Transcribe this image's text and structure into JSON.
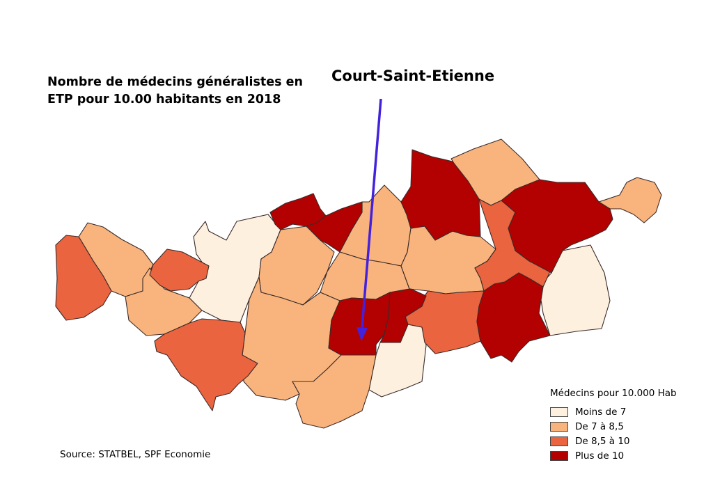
{
  "title": "Nombre de médecins généralistes en ETP pour 10.00 habitants en 2018",
  "callout_label": "Court-Saint-Etienne",
  "source": "Source: STATBEL, SPF Economie",
  "legend": {
    "title": "Médecins pour 10.000 Hab",
    "items": [
      {
        "label": "Moins de 7",
        "color": "#fdf0df"
      },
      {
        "label": "De 7 à 8,5",
        "color": "#f8b47c"
      },
      {
        "label": "De 8,5 à 10",
        "color": "#e9643f"
      },
      {
        "label": "Plus de 10",
        "color": "#b30000"
      }
    ]
  },
  "colors": {
    "arrow": "#4422dd",
    "border": "#3a2a2a"
  }
}
